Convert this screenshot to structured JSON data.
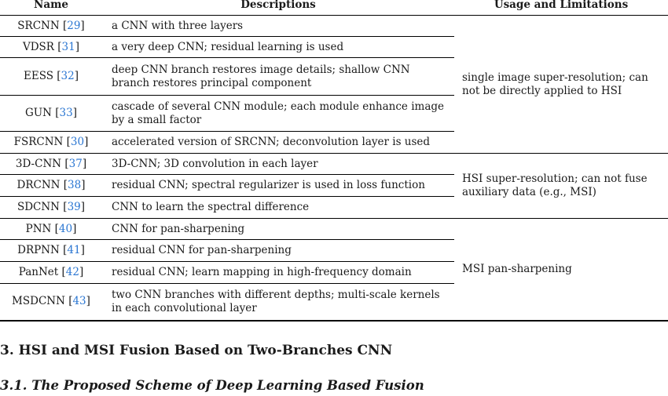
{
  "table": {
    "headers": {
      "name": "Name",
      "descriptions": "Descriptions",
      "usage": "Usage and Limitations"
    },
    "rows": [
      {
        "name": "SRCNN",
        "ref": "29",
        "description": "a CNN with three layers"
      },
      {
        "name": "VDSR",
        "ref": "31",
        "description": "a very deep CNN; residual learning is used"
      },
      {
        "name": "EESS",
        "ref": "32",
        "description": "deep CNN branch restores image details; shallow CNN branch restores principal component"
      },
      {
        "name": "GUN",
        "ref": "33",
        "description": "cascade of several CNN module; each module enhance image by a small factor"
      },
      {
        "name": "FSRCNN",
        "ref": "30",
        "description": "accelerated version of SRCNN; deconvolution layer is used"
      },
      {
        "name": "3D-CNN",
        "ref": "37",
        "description": "3D-CNN; 3D convolution in each layer"
      },
      {
        "name": "DRCNN",
        "ref": "38",
        "description": "residual CNN; spectral regularizer is used in loss function"
      },
      {
        "name": "SDCNN",
        "ref": "39",
        "description": "CNN to learn the spectral difference"
      },
      {
        "name": "PNN",
        "ref": "40",
        "description": "CNN for pan-sharpening"
      },
      {
        "name": "DRPNN",
        "ref": "41",
        "description": "residual CNN for pan-sharpening"
      },
      {
        "name": "PanNet",
        "ref": "42",
        "description": "residual CNN; learn mapping in high-frequency domain"
      },
      {
        "name": "MSDCNN",
        "ref": "43",
        "description": "two CNN branches with different depths; multi-scale kernels in each convolutional layer"
      }
    ],
    "groups": [
      {
        "usage": "single image super-resolution; can not be directly applied to HSI"
      },
      {
        "usage": "HSI super-resolution; can not fuse auxiliary data (e.g., MSI)"
      },
      {
        "usage": "MSI pan-sharpening"
      }
    ]
  },
  "section_heading": "3. HSI and MSI Fusion Based on Two-Branches CNN",
  "subsection_heading": "3.1. The Proposed Scheme of Deep Learning Based Fusion",
  "colors": {
    "link": "#2a76d2",
    "rule": "#000000"
  }
}
